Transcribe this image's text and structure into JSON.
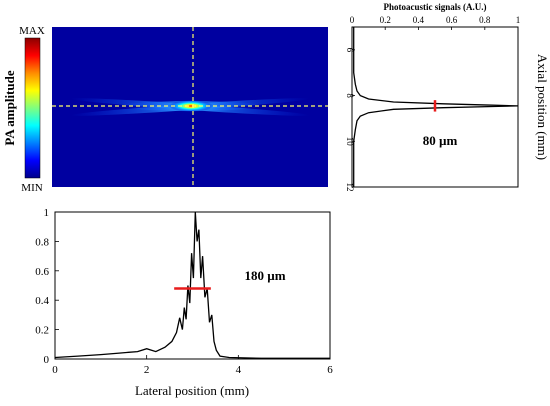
{
  "colorbar": {
    "label": "PA amplitude",
    "max_label": "MAX",
    "min_label": "MIN",
    "colors": [
      "#8b0000",
      "#ff0000",
      "#ff8c00",
      "#ffff00",
      "#7fff7f",
      "#00ffff",
      "#0080ff",
      "#0000ff",
      "#00008b"
    ]
  },
  "image_panel": {
    "background_color": "#0000a0",
    "crosshair_color": "#ffff66"
  },
  "chart_data": [
    {
      "id": "axial-profile",
      "type": "line",
      "title": "Photoacustic signals (A.U.)",
      "xlabel": "Photoacustic signals (A.U.)",
      "ylabel": "Axial position (mm)",
      "xlim": [
        0,
        1
      ],
      "ylim": [
        5,
        12
      ],
      "y_inverted": true,
      "x_tick_labels": [
        "0",
        "0.2",
        "0.4",
        "0.6",
        "0.8",
        "1"
      ],
      "y_tick_labels": [
        "6",
        "8",
        "10",
        "12"
      ],
      "x_ticks": [
        0,
        0.2,
        0.4,
        0.6,
        0.8,
        1
      ],
      "y_ticks": [
        6,
        8,
        10,
        12
      ],
      "annotation": "80 µm",
      "fwhm_marker": {
        "x": 0.5,
        "y_center": 8.45,
        "y_half_width": 0.25,
        "color": "#e81c1c"
      },
      "points": [
        [
          0.01,
          5.0
        ],
        [
          0.01,
          7.0
        ],
        [
          0.02,
          7.5
        ],
        [
          0.03,
          7.8
        ],
        [
          0.05,
          8.0
        ],
        [
          0.1,
          8.15
        ],
        [
          0.25,
          8.28
        ],
        [
          0.55,
          8.36
        ],
        [
          0.85,
          8.42
        ],
        [
          1.0,
          8.45
        ],
        [
          0.85,
          8.48
        ],
        [
          0.55,
          8.53
        ],
        [
          0.25,
          8.6
        ],
        [
          0.1,
          8.75
        ],
        [
          0.05,
          8.9
        ],
        [
          0.03,
          9.1
        ],
        [
          0.02,
          9.5
        ],
        [
          0.01,
          10.0
        ],
        [
          0.01,
          12.0
        ]
      ]
    },
    {
      "id": "lateral-profile",
      "type": "line",
      "xlabel": "Lateral position (mm)",
      "ylabel": "",
      "xlim": [
        0,
        6
      ],
      "ylim": [
        0,
        1
      ],
      "x_tick_labels": [
        "0",
        "2",
        "4",
        "6"
      ],
      "y_tick_labels": [
        "0",
        "0.2",
        "0.4",
        "0.6",
        "0.8",
        "1"
      ],
      "x_ticks": [
        0,
        2,
        4,
        6
      ],
      "y_ticks": [
        0,
        0.2,
        0.4,
        0.6,
        0.8,
        1
      ],
      "annotation": "180 µm",
      "fwhm_marker": {
        "y": 0.48,
        "x_center": 3.0,
        "x_half_width": 0.4,
        "color": "#e81c1c"
      },
      "points": [
        [
          0,
          0.01
        ],
        [
          0.5,
          0.02
        ],
        [
          1.0,
          0.03
        ],
        [
          1.4,
          0.04
        ],
        [
          1.8,
          0.05
        ],
        [
          2.0,
          0.07
        ],
        [
          2.2,
          0.05
        ],
        [
          2.4,
          0.08
        ],
        [
          2.55,
          0.12
        ],
        [
          2.65,
          0.18
        ],
        [
          2.72,
          0.28
        ],
        [
          2.78,
          0.2
        ],
        [
          2.82,
          0.35
        ],
        [
          2.86,
          0.27
        ],
        [
          2.9,
          0.5
        ],
        [
          2.94,
          0.38
        ],
        [
          2.98,
          0.72
        ],
        [
          3.02,
          0.55
        ],
        [
          3.06,
          1.0
        ],
        [
          3.1,
          0.8
        ],
        [
          3.14,
          0.88
        ],
        [
          3.18,
          0.55
        ],
        [
          3.22,
          0.7
        ],
        [
          3.27,
          0.42
        ],
        [
          3.32,
          0.48
        ],
        [
          3.37,
          0.25
        ],
        [
          3.42,
          0.3
        ],
        [
          3.47,
          0.12
        ],
        [
          3.52,
          0.06
        ],
        [
          3.6,
          0.02
        ],
        [
          3.8,
          0.01
        ],
        [
          4.5,
          0.005
        ],
        [
          6.0,
          0.005
        ]
      ]
    }
  ]
}
